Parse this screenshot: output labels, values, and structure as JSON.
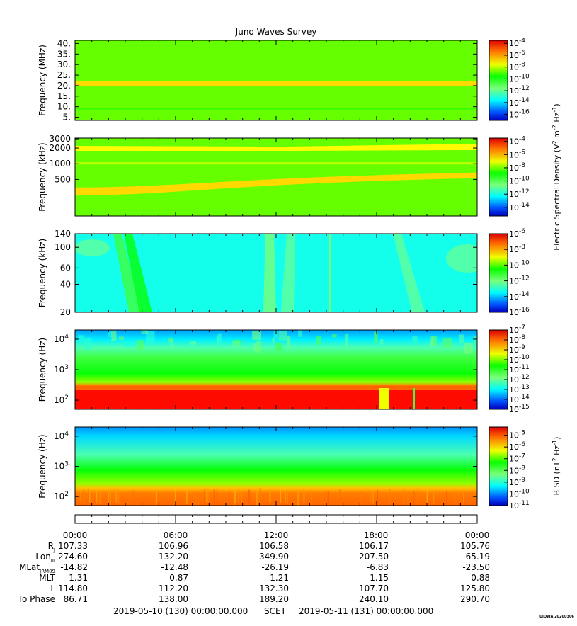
{
  "title": "Juno Waves Survey",
  "colors": {
    "jet": [
      "#00007f",
      "#0000ff",
      "#007fff",
      "#00ffff",
      "#7fff7f",
      "#00ff00",
      "#ffff00",
      "#ff7f00",
      "#ff0000",
      "#7f0000"
    ]
  },
  "chart_data": [
    {
      "type": "heatmap",
      "name": "panel-1",
      "ylabel": "Frequency (MHz)",
      "yscale": "linear",
      "ylim": [
        3.5,
        41.5
      ],
      "yticks": [
        {
          "v": 5,
          "t": "5."
        },
        {
          "v": 10,
          "t": "10."
        },
        {
          "v": 15,
          "t": "15."
        },
        {
          "v": 20,
          "t": "20."
        },
        {
          "v": 25,
          "t": "25."
        },
        {
          "v": 30,
          "t": "30."
        },
        {
          "v": 35,
          "t": "35."
        },
        {
          "v": 40,
          "t": "40."
        }
      ],
      "cbar": {
        "min": -17,
        "max": -3.5,
        "ticks": [
          {
            "exp": "-4"
          },
          {
            "exp": "-6"
          },
          {
            "exp": "-8"
          },
          {
            "exp": "-10"
          },
          {
            "exp": "-12"
          },
          {
            "exp": "-14"
          },
          {
            "exp": "-16"
          }
        ]
      },
      "background_level": 0.6,
      "bands": [
        {
          "center": 21,
          "width": 1.5,
          "level": 0.7
        }
      ]
    },
    {
      "type": "heatmap",
      "name": "panel-2",
      "ylabel": "Frequency (kHz)",
      "yscale": "log",
      "ylim": [
        100,
        3100
      ],
      "yticks": [
        {
          "v": 500,
          "t": "500"
        },
        {
          "v": 1000,
          "t": "1000"
        },
        {
          "v": 2000,
          "t": "2000"
        },
        {
          "v": 3000,
          "t": "3000"
        }
      ],
      "cbar": {
        "min": -15.3,
        "max": -3.5,
        "ticks": [
          {
            "exp": "-4"
          },
          {
            "exp": "-6"
          },
          {
            "exp": "-8"
          },
          {
            "exp": "-10"
          },
          {
            "exp": "-12"
          },
          {
            "exp": "-14"
          }
        ]
      },
      "background_level": 0.6,
      "bands": [
        {
          "start_khz": 300,
          "end_khz": 600,
          "level": 0.7
        },
        {
          "center_khz": 2000,
          "level": 0.67
        }
      ]
    },
    {
      "type": "heatmap",
      "name": "panel-3",
      "ylabel": "Frequency (kHz)",
      "yscale": "log",
      "ylim": [
        20,
        140
      ],
      "yticks": [
        {
          "v": 20,
          "t": "20"
        },
        {
          "v": 40,
          "t": "40"
        },
        {
          "v": 60,
          "t": "60"
        },
        {
          "v": 100,
          "t": "100"
        },
        {
          "v": 140,
          "t": "140"
        }
      ],
      "cbar": {
        "min": -16,
        "max": -6,
        "ticks": [
          {
            "exp": "-6"
          },
          {
            "exp": "-8"
          },
          {
            "exp": "-10"
          },
          {
            "exp": "-12"
          },
          {
            "exp": "-14"
          },
          {
            "exp": "-16"
          }
        ]
      },
      "background_level": 0.35
    },
    {
      "type": "heatmap",
      "name": "panel-4",
      "ylabel": "Frequency (Hz)",
      "yscale": "log",
      "ylim": [
        50,
        20000
      ],
      "yticks": [
        {
          "v": 100,
          "t": "10",
          "sup": "2"
        },
        {
          "v": 1000,
          "t": "10",
          "sup": "3"
        },
        {
          "v": 10000,
          "t": "10",
          "sup": "4"
        }
      ],
      "cbar": {
        "min": -15,
        "max": -7,
        "ticks": [
          {
            "exp": "-7"
          },
          {
            "exp": "-8"
          },
          {
            "exp": "-9"
          },
          {
            "exp": "-10"
          },
          {
            "exp": "-11"
          },
          {
            "exp": "-12"
          },
          {
            "exp": "-13"
          },
          {
            "exp": "-14"
          },
          {
            "exp": "-15"
          }
        ]
      }
    },
    {
      "type": "heatmap",
      "name": "panel-5",
      "ylabel": "Frequency (Hz)",
      "yscale": "log",
      "ylim": [
        50,
        20000
      ],
      "yticks": [
        {
          "v": 100,
          "t": "10",
          "sup": "2"
        },
        {
          "v": 1000,
          "t": "10",
          "sup": "3"
        },
        {
          "v": 10000,
          "t": "10",
          "sup": "4"
        }
      ],
      "cbar": {
        "min": -11,
        "max": -4.3,
        "ticks": [
          {
            "exp": "-5"
          },
          {
            "exp": "-6"
          },
          {
            "exp": "-7"
          },
          {
            "exp": "-8"
          },
          {
            "exp": "-9"
          },
          {
            "exp": "-10"
          },
          {
            "exp": "-11"
          }
        ]
      }
    }
  ],
  "cbar_labels": {
    "electric": {
      "main": "Electric Spectral Density (V",
      "sup1": "2",
      "mid1": " m",
      "sup2": "-2",
      "mid2": " Hz",
      "sup3": "-1",
      "end": ")"
    },
    "magnetic": {
      "main": "B SD (nT",
      "sup1": "2",
      "mid1": " Hz",
      "sup2": "-1",
      "end": ")"
    }
  },
  "cbar_tick_base": "10",
  "ephemeris": {
    "times": [
      "00:00",
      "06:00",
      "12:00",
      "18:00",
      "00:00"
    ],
    "rows": [
      {
        "label": "R",
        "sub": "J",
        "values": [
          "107.33",
          "106.96",
          "106.58",
          "106.17",
          "105.76"
        ]
      },
      {
        "label": "Lon",
        "sub": "III",
        "values": [
          "274.60",
          "132.20",
          "349.90",
          "207.50",
          "65.19"
        ]
      },
      {
        "label": "MLat",
        "sub": "JRM09",
        "values": [
          "-14.82",
          "-12.48",
          "-26.19",
          "-6.83",
          "-23.50"
        ]
      },
      {
        "label": "MLT",
        "sub": "",
        "values": [
          "1.31",
          "0.87",
          "1.21",
          "1.15",
          "0.88"
        ]
      },
      {
        "label": "L",
        "sub": "",
        "values": [
          "114.80",
          "112.20",
          "132.30",
          "107.70",
          "125.80"
        ]
      },
      {
        "label": "Io Phase",
        "sub": "",
        "values": [
          "86.71",
          "138.00",
          "189.20",
          "240.10",
          "290.70"
        ]
      }
    ]
  },
  "footer": {
    "start": "2019-05-10 (130) 00:00:00.000",
    "mid": "SCET",
    "end": "2019-05-11 (131) 00:00:00.000",
    "credit": "UIOWA 20200306"
  }
}
